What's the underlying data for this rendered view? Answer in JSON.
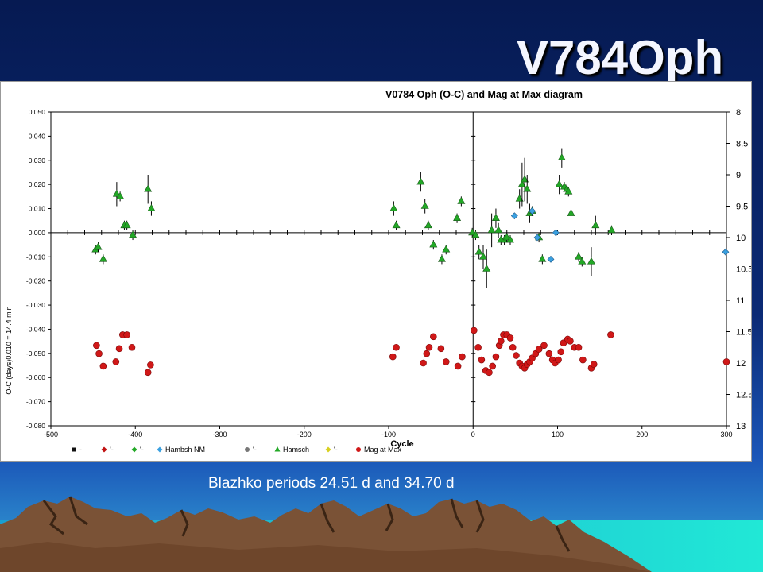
{
  "slide": {
    "title": "V784Oph",
    "caption": "Blazhko periods 24.51 d and 34.70 d"
  },
  "colors": {
    "background_top": "#061a52",
    "background_bottom": "#35a6d8",
    "hamsch_series": "#22a826",
    "mag_series": "#d01818",
    "hambsh_nm_series": "#3aa0e0"
  },
  "chart_data": {
    "type": "scatter",
    "title": "V0784 Oph (O-C) and Mag at Max diagram",
    "xlabel": "Cycle",
    "ylabel": "O-C  (days)0.010 = 14.4 min",
    "xlim": [
      -500,
      300
    ],
    "ylim": [
      -0.08,
      0.05
    ],
    "y2lim": [
      13,
      8
    ],
    "xticks": [
      "-500",
      "-400",
      "-300",
      "-200",
      "-100",
      "0",
      "100",
      "200",
      "300"
    ],
    "yticks": [
      "0.050",
      "0.040",
      "0.030",
      "0.020",
      "0.010",
      "0.000",
      "-0.010",
      "-0.020",
      "-0.030",
      "-0.040",
      "-0.050",
      "-0.060",
      "-0.070",
      "-0.080"
    ],
    "y2ticks": [
      "8",
      "8.5",
      "9",
      "9.5",
      "10",
      "10.5",
      "11",
      "11.5",
      "12",
      "12.5",
      "13"
    ],
    "grid": false,
    "legend_position": "bottom",
    "legend": [
      {
        "label": "-",
        "marker": "square",
        "color": "#111111"
      },
      {
        "label": "'-",
        "marker": "diamond",
        "color": "#c01010"
      },
      {
        "label": "'-",
        "marker": "diamond",
        "color": "#22a826"
      },
      {
        "label": "Hambsh NM",
        "marker": "diamond",
        "color": "#3aa0e0"
      },
      {
        "label": "'-",
        "marker": "circle",
        "color": "#777777"
      },
      {
        "label": "Hamsch",
        "marker": "triangle",
        "color": "#22a826"
      },
      {
        "label": "'-",
        "marker": "diamond",
        "color": "#d8d020"
      },
      {
        "label": "Mag at Max",
        "marker": "circle",
        "color": "#d01818"
      }
    ],
    "series": [
      {
        "name": "Hamsch",
        "axis": "left",
        "marker": "triangle",
        "x": [
          -447,
          -444,
          -438,
          -422,
          -418,
          -413,
          -410,
          -403,
          -385,
          -381,
          -94,
          -91,
          -62,
          -57,
          -53,
          -47,
          -37,
          -32,
          -19,
          -14,
          -1,
          3,
          7,
          12,
          16,
          22,
          27,
          30,
          33,
          37,
          40,
          44,
          55,
          58,
          61,
          64,
          67,
          70,
          78,
          82,
          102,
          105,
          108,
          111,
          113,
          116,
          125,
          129,
          140,
          145,
          164
        ],
        "y": [
          -0.007,
          -0.006,
          -0.011,
          0.016,
          0.015,
          0.003,
          0.003,
          -0.001,
          0.018,
          0.01,
          0.01,
          0.003,
          0.021,
          0.011,
          0.003,
          -0.005,
          -0.011,
          -0.007,
          0.006,
          0.013,
          0.0,
          -0.001,
          -0.008,
          -0.01,
          -0.015,
          0.001,
          0.006,
          0.001,
          -0.003,
          -0.003,
          -0.002,
          -0.003,
          0.014,
          0.02,
          0.022,
          0.018,
          0.008,
          0.009,
          -0.002,
          -0.011,
          0.02,
          0.031,
          0.019,
          0.018,
          0.017,
          0.008,
          -0.01,
          -0.012,
          -0.012,
          0.003,
          0.001
        ],
        "err": [
          0.002,
          0.002,
          0.002,
          0.005,
          0.002,
          0.002,
          0.002,
          0.002,
          0.006,
          0.003,
          0.003,
          0.002,
          0.004,
          0.003,
          0.002,
          0.002,
          0.002,
          0.002,
          0.002,
          0.002,
          0.002,
          0.002,
          0.003,
          0.005,
          0.008,
          0.007,
          0.004,
          0.003,
          0.002,
          0.002,
          0.002,
          0.002,
          0.004,
          0.009,
          0.009,
          0.006,
          0.004,
          0.002,
          0.002,
          0.002,
          0.004,
          0.004,
          0.002,
          0.002,
          0.002,
          0.002,
          0.002,
          0.002,
          0.006,
          0.004,
          0.002
        ]
      },
      {
        "name": "Hambsh NM",
        "axis": "left",
        "marker": "diamond",
        "x": [
          49,
          70,
          76,
          92,
          98,
          299
        ],
        "y": [
          0.007,
          0.009,
          -0.002,
          -0.011,
          0.0,
          -0.008
        ]
      },
      {
        "name": "Mag at Max",
        "axis": "right",
        "marker": "circle",
        "x": [
          -446,
          -443,
          -438,
          -423,
          -419,
          -415,
          -410,
          -404,
          -385,
          -382,
          -95,
          -91,
          -59,
          -55,
          -52,
          -47,
          -38,
          -32,
          -18,
          -13,
          1,
          6,
          10,
          15,
          19,
          23,
          27,
          31,
          33,
          36,
          40,
          44,
          47,
          51,
          55,
          58,
          61,
          64,
          67,
          70,
          74,
          78,
          84,
          90,
          94,
          97,
          101,
          104,
          107,
          112,
          115,
          120,
          125,
          130,
          140,
          143,
          163,
          300
        ],
        "y": [
          11.72,
          11.85,
          12.05,
          11.98,
          11.77,
          11.55,
          11.55,
          11.75,
          12.15,
          12.03,
          11.9,
          11.75,
          12.0,
          11.85,
          11.75,
          11.58,
          11.77,
          11.98,
          12.05,
          11.9,
          11.48,
          11.75,
          11.95,
          12.12,
          12.15,
          12.05,
          11.9,
          11.72,
          11.65,
          11.55,
          11.55,
          11.6,
          11.75,
          11.88,
          12.0,
          12.05,
          12.08,
          12.02,
          11.98,
          11.92,
          11.85,
          11.78,
          11.72,
          11.85,
          11.95,
          12.0,
          11.95,
          11.82,
          11.68,
          11.62,
          11.65,
          11.75,
          11.75,
          11.95,
          12.08,
          12.02,
          11.55,
          11.98
        ]
      }
    ]
  }
}
